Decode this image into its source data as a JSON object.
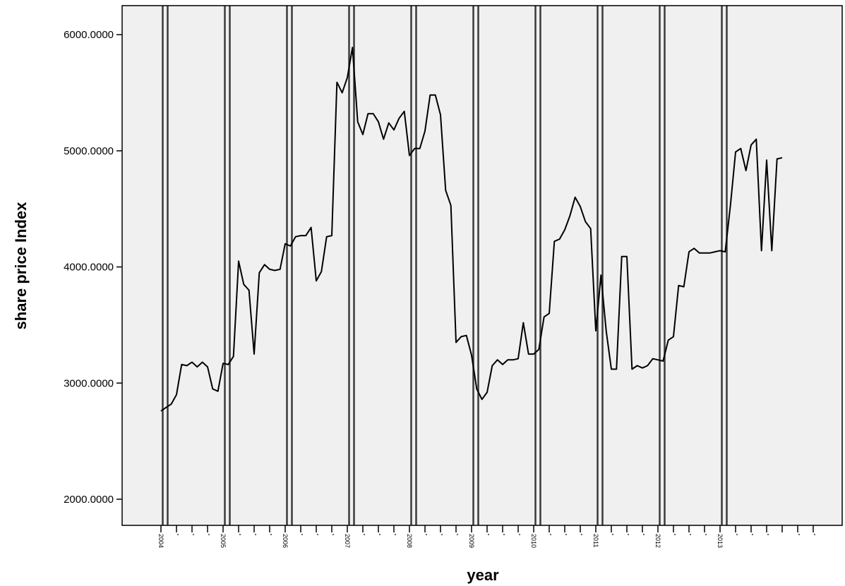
{
  "chart_data": {
    "type": "line",
    "title": "",
    "xlabel": "year",
    "ylabel": "share  price Index",
    "ylim": [
      1775,
      6250
    ],
    "yticks": [
      2000,
      3000,
      4000,
      5000,
      6000
    ],
    "ytick_labels": [
      "2000.0000",
      "3000.0000",
      "4000.0000",
      "5000.0000",
      "6000.0000"
    ],
    "years": [
      "2004",
      "2005",
      "2006",
      "2007",
      "2008",
      "2009",
      "2010",
      "2011",
      "2012",
      "2013"
    ],
    "ticks_per_year": 4,
    "grid": false,
    "reference_lines_at_year_boundaries": true,
    "background_color": "#f0f0f0",
    "line_color": "#000000",
    "series": [
      {
        "values": [
          2760,
          2790,
          2820,
          2900,
          3160,
          3150,
          3180,
          3140,
          3180,
          3140,
          2950,
          2930,
          3170,
          3160,
          3230,
          4050,
          3850,
          3800,
          3250,
          3950,
          4020,
          3980,
          3970,
          3980,
          4200,
          4180,
          4260,
          4270,
          4270,
          4340,
          3880,
          3960,
          4260,
          4270,
          5590,
          5500,
          5630,
          5890,
          5250,
          5140,
          5320,
          5320,
          5250,
          5100,
          5240,
          5180,
          5280,
          5340,
          4960,
          5020,
          5020,
          5170,
          5480,
          5480,
          5310,
          4660,
          4530,
          3350,
          3400,
          3410,
          3240,
          2950,
          2860,
          2920,
          3150,
          3200,
          3160,
          3200,
          3200,
          3210,
          3520,
          3250,
          3250,
          3290,
          3570,
          3600,
          4220,
          4240,
          4320,
          4440,
          4600,
          4520,
          4390,
          4330,
          3450,
          3930,
          3450,
          3120,
          3120,
          4090,
          4090,
          3120,
          3150,
          3130,
          3150,
          3210,
          3200,
          3190,
          3370,
          3400,
          3840,
          3830,
          4130,
          4160,
          4120,
          4120,
          4120,
          4130,
          4140,
          4130,
          4530,
          4990,
          5020,
          4830,
          5050,
          5100,
          4140,
          4920,
          4140,
          4930,
          4940
        ]
      }
    ]
  }
}
